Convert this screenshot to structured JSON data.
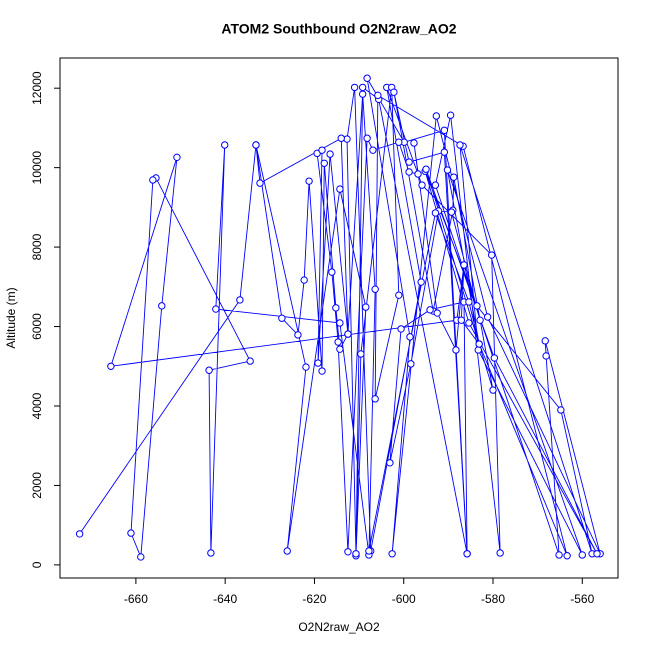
{
  "chart_data": {
    "type": "line",
    "markers": true,
    "title": "ATOM2 Southbound O2N2raw_AO2",
    "x_label": "O2N2raw_AO2",
    "y_label": "Altitude (m)",
    "color": "#0000ff",
    "xlim": [
      -677,
      -552
    ],
    "ylim": [
      -330,
      12760
    ],
    "xticks": [
      -660,
      -640,
      -620,
      -600,
      -580,
      -560
    ],
    "yticks": [
      0,
      2000,
      4000,
      6000,
      8000,
      10000,
      12000
    ],
    "x": [
      -672.6,
      -636.7,
      -633.1,
      -621.9,
      -626.1,
      -614.3,
      -608.5,
      -610.7,
      -609.2,
      -605.6,
      -585.8,
      -590.9,
      -599.9,
      -608.2,
      -598.6,
      -602.6,
      -592.7,
      -581.2,
      -556.0,
      -568.3,
      -568.1,
      -565.2,
      -592.9,
      -589.5,
      -578.4,
      -580.3,
      -595.9,
      -603.8,
      -596.1,
      -607.4,
      -611.0,
      -612.7,
      -610.7,
      -609.6,
      -602.7,
      -601.1,
      -606.4,
      -605.8,
      -586.7,
      -563.4,
      -583.1,
      -590.2,
      -560.0,
      -583.3,
      -587.4,
      -557.8,
      -564.8,
      -583.6,
      -595.2,
      -585.4,
      -556.7,
      -579.7,
      -595.0,
      -580.0,
      -588.8,
      -589.0,
      -593.4,
      -602.2,
      -598.8,
      -590.9,
      -585.8,
      -586.5,
      -594.1,
      -600.6,
      -603.1,
      -598.4,
      -592.2,
      -589.3,
      -582.9,
      -586.5,
      -588.3,
      -592.5,
      -597.7,
      -596.8,
      -598.8,
      -601.1,
      -606.9,
      -608.2,
      -612.5,
      -614.7,
      -616.1,
      -619.4,
      -618.3,
      -619.2,
      -616.5,
      -612.5,
      -614.3,
      -615.2,
      -617.8,
      -618.3,
      -621.2,
      -622.3,
      -623.7,
      -627.3,
      -633.1,
      -632.2,
      -614.0,
      -612.5,
      -609.2,
      -606.4,
      -607.8,
      -614.3,
      -642.1,
      -640.1,
      -643.2,
      -643.6,
      -634.4,
      -655.5,
      -656.2,
      -661.1,
      -658.9,
      -654.2,
      -650.8,
      -665.6,
      -588.1,
      -586.5,
      -587.1,
      -583.1,
      -585.4,
      -592.9,
      -607.8
    ],
    "values": [
      780,
      6670,
      10570,
      4980,
      350,
      9460,
      6490,
      230,
      12020,
      11720,
      280,
      10940,
      10640,
      12250,
      5740,
      280,
      11300,
      6240,
      280,
      5640,
      5260,
      250,
      9560,
      11320,
      300,
      7800,
      9560,
      12020,
      7120,
      350,
      12020,
      10720,
      280,
      5310,
      12020,
      6790,
      4180,
      11820,
      10540,
      230,
      5560,
      9940,
      250,
      5410,
      10570,
      280,
      3900,
      6520,
      9910,
      6090,
      280,
      5210,
      9960,
      4400,
      9760,
      8930,
      6390,
      11900,
      10140,
      10390,
      280,
      6620,
      6420,
      5940,
      2570,
      5060,
      8910,
      8880,
      6160,
      7550,
      5410,
      6340,
      10620,
      9840,
      9890,
      10640,
      10440,
      10740,
      330,
      5610,
      7370,
      10360,
      10440,
      5080,
      10340,
      5810,
      5430,
      6470,
      10110,
      4880,
      9660,
      7170,
      5790,
      6210,
      10570,
      9610,
      10740,
      5810,
      11850,
      6940,
      250,
      6090,
      6440,
      10570,
      300,
      4900,
      5130,
      9740,
      9690,
      800,
      200,
      6520,
      10260,
      5000,
      6160,
      7550,
      6160,
      5560,
      6620,
      8860,
      350
    ]
  }
}
